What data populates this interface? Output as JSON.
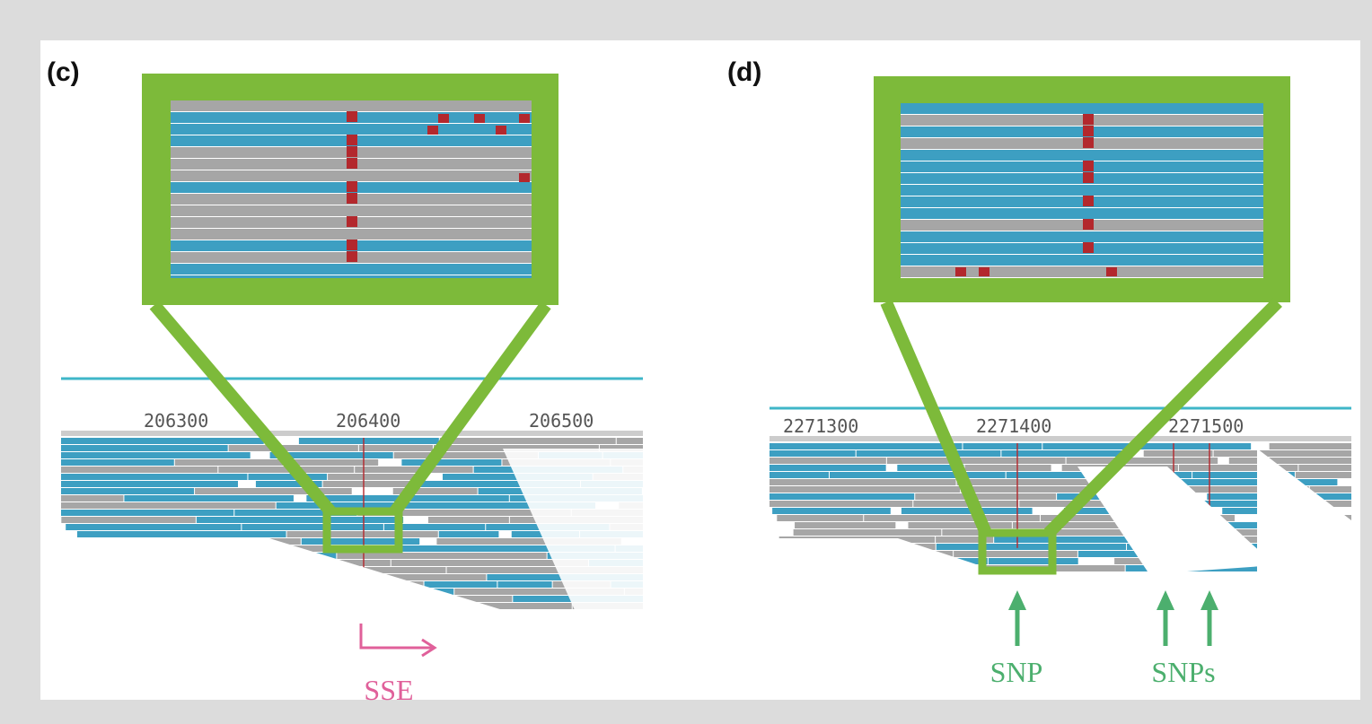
{
  "panels": [
    {
      "label": "(c)",
      "ruler_ticks": [
        "206300",
        "206400",
        "206500"
      ],
      "annotations": [
        "SSE"
      ]
    },
    {
      "label": "(d)",
      "ruler_ticks": [
        "2271300",
        "2271400",
        "2271500"
      ],
      "annotations": [
        "SNP",
        "SNPs"
      ]
    }
  ]
}
